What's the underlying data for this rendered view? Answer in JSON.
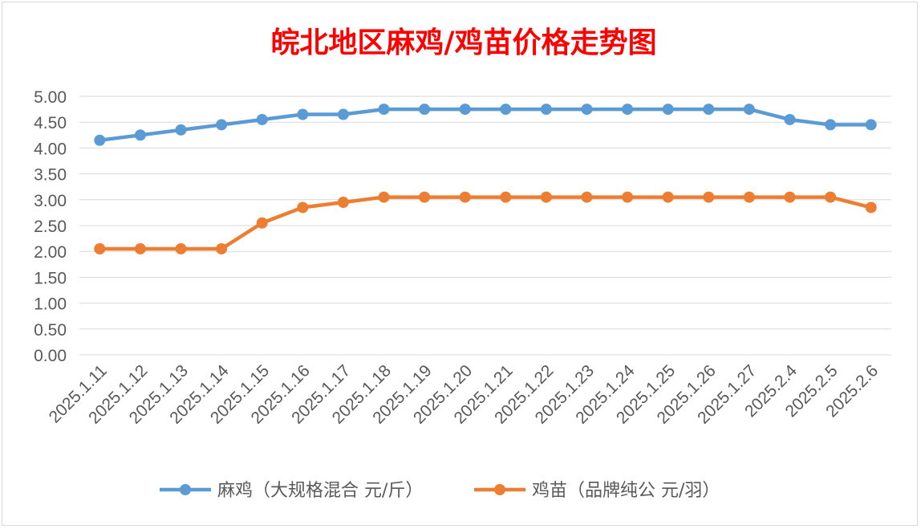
{
  "chart_data": {
    "type": "line",
    "title": "皖北地区麻鸡/鸡苗价格走势图",
    "title_color": "#ff0000",
    "xlabel": "",
    "ylabel": "",
    "ylim": [
      0,
      5
    ],
    "ytick_step": 0.5,
    "ytick_labels": [
      "0.00",
      "0.50",
      "1.00",
      "1.50",
      "2.00",
      "2.50",
      "3.00",
      "3.50",
      "4.00",
      "4.50",
      "5.00"
    ],
    "grid": true,
    "legend_position": "bottom",
    "categories": [
      "2025.1.11",
      "2025.1.12",
      "2025.1.13",
      "2025.1.14",
      "2025.1.15",
      "2025.1.16",
      "2025.1.17",
      "2025.1.18",
      "2025.1.19",
      "2025.1.20",
      "2025.1.21",
      "2025.1.22",
      "2025.1.23",
      "2025.1.24",
      "2025.1.25",
      "2025.1.26",
      "2025.1.27",
      "2025.2.4",
      "2025.2.5",
      "2025.2.6"
    ],
    "series": [
      {
        "name": "麻鸡（大规格混合 元/斤）",
        "color": "#5b9bd5",
        "values": [
          4.15,
          4.25,
          4.35,
          4.45,
          4.55,
          4.65,
          4.65,
          4.75,
          4.75,
          4.75,
          4.75,
          4.75,
          4.75,
          4.75,
          4.75,
          4.75,
          4.75,
          4.55,
          4.45,
          4.45
        ]
      },
      {
        "name": "鸡苗（品牌纯公 元/羽）",
        "color": "#ed7d31",
        "values": [
          2.05,
          2.05,
          2.05,
          2.05,
          2.55,
          2.85,
          2.95,
          3.05,
          3.05,
          3.05,
          3.05,
          3.05,
          3.05,
          3.05,
          3.05,
          3.05,
          3.05,
          3.05,
          3.05,
          2.85
        ]
      }
    ]
  }
}
